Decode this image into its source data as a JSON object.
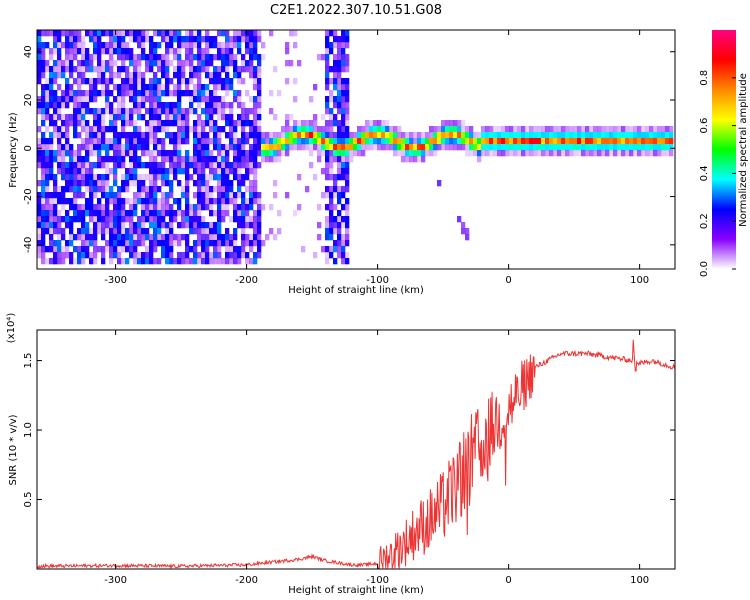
{
  "figure_title": "C2E1.2022.307.10.51.G08",
  "colors": {
    "snr_line": "#ee3333",
    "axis": "#000000"
  },
  "chart_data": [
    {
      "type": "heatmap",
      "xlabel": "Height of straight line (km)",
      "ylabel": "Frequency (Hz)",
      "xlim": [
        -360,
        127
      ],
      "ylim": [
        -50,
        49
      ],
      "x_ticks": [
        -300,
        -200,
        -100,
        0,
        100
      ],
      "y_ticks": [
        -40,
        -20,
        0,
        20,
        40
      ],
      "colorbar": {
        "label": "Normalized spectral amplitude",
        "range": [
          0,
          1
        ],
        "ticks": [
          "0.0",
          "0.2",
          "0.4",
          "0.6",
          "0.8"
        ],
        "colormap": [
          "#ffffff",
          "#8800ff",
          "#0000ff",
          "#00ffff",
          "#00ff00",
          "#ffff00",
          "#ff8800",
          "#ff0000",
          "#ff0080"
        ]
      },
      "noise_region_x": [
        -360,
        -190
      ],
      "noise_patch_x": [
        -140,
        -120
      ],
      "signal_band": {
        "x_start": -190,
        "x_end": 127,
        "center_freq": 2,
        "width_hz": 6,
        "peak_amplitude": 0.9
      },
      "secondary_trace": {
        "x": [
          -55,
          -30
        ],
        "freq": [
          -12,
          -38
        ]
      }
    },
    {
      "type": "line",
      "xlabel": "Height of straight line (km)",
      "ylabel": "SNR (10 * v/v)",
      "y_multiplier": "(x10⁴)",
      "xlim": [
        -360,
        127
      ],
      "ylim": [
        0,
        1.72
      ],
      "x_ticks": [
        -300,
        -200,
        -100,
        0,
        100
      ],
      "y_ticks": [
        "0.5",
        "1.0",
        "1.5"
      ],
      "y_tick_values": [
        0.5,
        1.0,
        1.5
      ],
      "series": [
        {
          "x": [
            -360,
            -300,
            -250,
            -200,
            -180,
            -160,
            -150,
            -140,
            -120,
            -110,
            -100,
            -90,
            -80,
            -70,
            -60,
            -50,
            -40,
            -30,
            -20,
            -10,
            0,
            10,
            20,
            40,
            60,
            80,
            95,
            100,
            110,
            127
          ],
          "values": [
            0.02,
            0.025,
            0.02,
            0.03,
            0.05,
            0.07,
            0.09,
            0.06,
            0.03,
            0.03,
            0.04,
            0.1,
            0.18,
            0.28,
            0.35,
            0.45,
            0.6,
            0.78,
            0.9,
            1.05,
            1.15,
            1.3,
            1.45,
            1.55,
            1.55,
            1.52,
            1.5,
            1.48,
            1.5,
            1.45
          ]
        }
      ]
    }
  ]
}
